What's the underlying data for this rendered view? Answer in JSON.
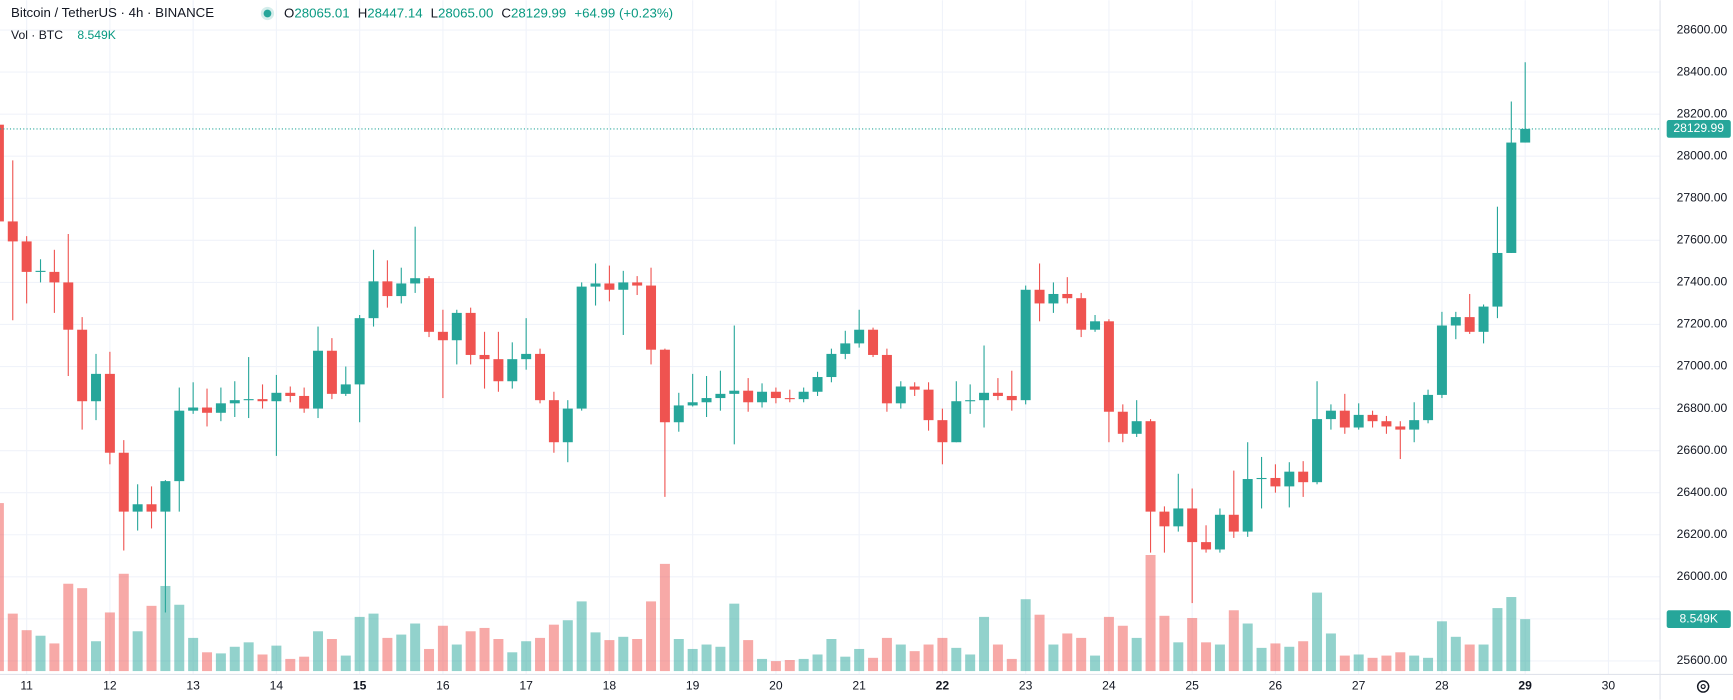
{
  "chart_data": {
    "type": "candlestick",
    "title": "Bitcoin / TetherUS · 4h · BINANCE",
    "ohlc": [
      {
        "key": "O",
        "value": "28065.01"
      },
      {
        "key": "H",
        "value": "28447.14"
      },
      {
        "key": "L",
        "value": "28065.00"
      },
      {
        "key": "C",
        "value": "28129.99"
      }
    ],
    "change": "+64.99 (+0.23%)",
    "volume_title": "Vol · BTC",
    "last_volume_label": "8.549K",
    "up_color": "#26a69a",
    "down_color": "#ef5350",
    "grid": true,
    "xlim": [
      10.68,
      30.62
    ],
    "xticks": [
      11,
      12,
      13,
      14,
      15,
      16,
      17,
      18,
      19,
      20,
      21,
      22,
      23,
      24,
      25,
      26,
      27,
      28,
      29,
      30
    ],
    "ylim": [
      25536,
      28742
    ],
    "yticks": [
      {
        "value": 25600,
        "label": "25600.00"
      },
      {
        "value": 25800,
        "label": "25800.00"
      },
      {
        "value": 26000,
        "label": "26000.00"
      },
      {
        "value": 26200,
        "label": "26200.00"
      },
      {
        "value": 26400,
        "label": "26400.00"
      },
      {
        "value": 26600,
        "label": "26600.00"
      },
      {
        "value": 26800,
        "label": "26800.00"
      },
      {
        "value": 27000,
        "label": "27000.00"
      },
      {
        "value": 27200,
        "label": "27200.00"
      },
      {
        "value": 27400,
        "label": "27400.00"
      },
      {
        "value": 27600,
        "label": "27600.00"
      },
      {
        "value": 27800,
        "label": "27800.00"
      },
      {
        "value": 28000,
        "label": "28000.00"
      },
      {
        "value": 28200,
        "label": "28200.00"
      },
      {
        "value": 28400,
        "label": "28400.00"
      },
      {
        "value": 28600,
        "label": "28600.00"
      }
    ],
    "x": [
      10.6667,
      10.8333,
      11,
      11.1667,
      11.3333,
      11.5,
      11.6667,
      11.8333,
      12,
      12.1667,
      12.3333,
      12.5,
      12.6667,
      12.8333,
      13,
      13.1667,
      13.3333,
      13.5,
      13.6667,
      13.8333,
      14,
      14.1667,
      14.3333,
      14.5,
      14.6667,
      14.8333,
      15,
      15.1667,
      15.3333,
      15.5,
      15.6667,
      15.8333,
      16,
      16.1667,
      16.3333,
      16.5,
      16.6667,
      16.8333,
      17,
      17.1667,
      17.3333,
      17.5,
      17.6667,
      17.8333,
      18,
      18.1667,
      18.3333,
      18.5,
      18.6667,
      18.8333,
      19,
      19.1667,
      19.3333,
      19.5,
      19.6667,
      19.8333,
      20,
      20.1667,
      20.3333,
      20.5,
      20.6667,
      20.8333,
      21,
      21.1667,
      21.3333,
      21.5,
      21.6667,
      21.8333,
      22,
      22.1667,
      22.3333,
      22.5,
      22.6667,
      22.8333,
      23,
      23.1667,
      23.3333,
      23.5,
      23.6667,
      23.8333,
      24,
      24.1667,
      24.3333,
      24.5,
      24.6667,
      24.8333,
      25,
      25.1667,
      25.3333,
      25.5,
      25.6667,
      25.8333,
      26,
      26.1667,
      26.3333,
      26.5,
      26.6667,
      26.8333,
      27,
      27.1667,
      27.3333,
      27.5,
      27.6667,
      27.8333,
      28,
      28.1667,
      28.3333,
      28.5,
      28.6667,
      28.8333,
      29
    ],
    "open": [
      28150,
      27690,
      27595,
      27450,
      27450,
      27400,
      27175,
      26835,
      26965,
      26590,
      26310,
      26345,
      26310,
      26455,
      26790,
      26805,
      26780,
      26825,
      26840,
      26845,
      26835,
      26875,
      26860,
      26800,
      27075,
      26870,
      26915,
      27230,
      27405,
      27335,
      27395,
      27420,
      27165,
      27125,
      27255,
      27055,
      27035,
      26930,
      27035,
      27060,
      26840,
      26640,
      26800,
      27380,
      27395,
      27365,
      27400,
      27385,
      27080,
      26735,
      26815,
      26830,
      26850,
      26870,
      26885,
      26830,
      26880,
      26850,
      26845,
      26880,
      26950,
      27060,
      27110,
      27175,
      27055,
      26825,
      26905,
      26890,
      26745,
      26640,
      26835,
      26840,
      26875,
      26860,
      26840,
      27365,
      27300,
      27345,
      27325,
      27175,
      27215,
      26785,
      26680,
      26740,
      26310,
      26240,
      26325,
      26165,
      26130,
      26295,
      26215,
      26465,
      26470,
      26430,
      26500,
      26450,
      26750,
      26790,
      26710,
      26770,
      26740,
      26715,
      26700,
      26745,
      26865,
      27195,
      27235,
      27165,
      27285,
      27540,
      28065.01
    ],
    "high": [
      28160,
      27980,
      27620,
      27510,
      27555,
      27630,
      27235,
      27060,
      27070,
      26650,
      26440,
      26430,
      26460,
      26900,
      26925,
      26895,
      26900,
      26930,
      27045,
      26915,
      26960,
      26905,
      26900,
      27190,
      27135,
      27000,
      27245,
      27555,
      27505,
      27470,
      27665,
      27430,
      27270,
      27270,
      27280,
      27165,
      27165,
      27115,
      27230,
      27085,
      26880,
      26840,
      27400,
      27490,
      27480,
      27455,
      27430,
      27470,
      27085,
      26875,
      26965,
      26955,
      26980,
      27195,
      26945,
      26920,
      26900,
      26890,
      26900,
      26975,
      27085,
      27170,
      27270,
      27185,
      27085,
      26930,
      26925,
      26925,
      26800,
      26930,
      26915,
      27100,
      26945,
      26980,
      27385,
      27490,
      27400,
      27425,
      27350,
      27245,
      27225,
      26820,
      26840,
      26750,
      26335,
      26490,
      26420,
      26245,
      26325,
      26505,
      26640,
      26570,
      26535,
      26545,
      26550,
      26930,
      26820,
      26870,
      26825,
      26790,
      26765,
      26740,
      26830,
      26890,
      27260,
      27260,
      27345,
      27295,
      27760,
      28260,
      28447.14
    ],
    "low": [
      27680,
      27220,
      27300,
      27400,
      27255,
      26955,
      26700,
      26745,
      26535,
      26125,
      26220,
      26230,
      25830,
      26310,
      26775,
      26715,
      26740,
      26760,
      26755,
      26800,
      26575,
      26830,
      26780,
      26755,
      26845,
      26860,
      26735,
      27190,
      27280,
      27300,
      27350,
      27140,
      26850,
      27010,
      27010,
      26895,
      26880,
      26895,
      26985,
      26825,
      26590,
      26545,
      26790,
      27290,
      27310,
      27150,
      27340,
      27010,
      26380,
      26690,
      26810,
      26760,
      26790,
      26630,
      26785,
      26805,
      26825,
      26830,
      26830,
      26860,
      26925,
      27035,
      27090,
      27045,
      26785,
      26800,
      26860,
      26695,
      26535,
      26640,
      26775,
      26710,
      26840,
      26790,
      26820,
      27215,
      27255,
      27300,
      27140,
      27165,
      26640,
      26640,
      26665,
      26115,
      26115,
      26215,
      25875,
      26115,
      26115,
      26185,
      26190,
      26325,
      26400,
      26330,
      26380,
      26440,
      26700,
      26680,
      26700,
      26710,
      26680,
      26560,
      26640,
      26730,
      26850,
      27130,
      27155,
      27110,
      27230,
      27540,
      28065.0
    ],
    "close": [
      27690,
      27595,
      27450,
      27455,
      27400,
      27175,
      26835,
      26965,
      26590,
      26310,
      26345,
      26310,
      26455,
      26790,
      26805,
      26780,
      26825,
      26840,
      26845,
      26835,
      26875,
      26860,
      26800,
      27075,
      26870,
      26915,
      27230,
      27405,
      27335,
      27395,
      27420,
      27165,
      27125,
      27255,
      27055,
      27035,
      26930,
      27035,
      27060,
      26840,
      26640,
      26800,
      27380,
      27395,
      27365,
      27400,
      27385,
      27080,
      26735,
      26815,
      26830,
      26850,
      26870,
      26885,
      26830,
      26880,
      26850,
      26845,
      26880,
      26950,
      27060,
      27110,
      27175,
      27055,
      26825,
      26905,
      26890,
      26745,
      26640,
      26835,
      26840,
      26875,
      26860,
      26840,
      27365,
      27300,
      27345,
      27325,
      27175,
      27215,
      26785,
      26680,
      26740,
      26310,
      26240,
      26325,
      26165,
      26130,
      26295,
      26215,
      26465,
      26470,
      26430,
      26500,
      26450,
      26750,
      26790,
      26710,
      26770,
      26740,
      26715,
      26700,
      26745,
      26865,
      27195,
      27235,
      27165,
      27285,
      27540,
      28065,
      28129.99
    ],
    "volume": [
      27660,
      9460,
      6730,
      5820,
      4550,
      14380,
      13650,
      4910,
      9650,
      16020,
      6550,
      10740,
      14010,
      10920,
      5460,
      3090,
      2910,
      4000,
      4730,
      2730,
      4190,
      2000,
      2370,
      6550,
      5280,
      2550,
      8920,
      9460,
      5460,
      6010,
      7830,
      3640,
      7460,
      4370,
      6550,
      7100,
      5280,
      3090,
      4910,
      5460,
      7640,
      8370,
      11470,
      6370,
      5100,
      5640,
      5280,
      11470,
      17650,
      5280,
      3640,
      4370,
      4000,
      11100,
      5100,
      2000,
      1640,
      1820,
      2000,
      2730,
      5280,
      2370,
      3640,
      2180,
      5460,
      4370,
      3280,
      4370,
      5460,
      3820,
      2730,
      8920,
      4370,
      2000,
      11830,
      9280,
      4370,
      6190,
      5460,
      2550,
      8920,
      7460,
      5460,
      19110,
      9100,
      4730,
      8740,
      4730,
      4370,
      10010,
      7830,
      3820,
      4550,
      4000,
      4910,
      12920,
      6190,
      2550,
      2730,
      2180,
      2550,
      3090,
      2550,
      2180,
      8190,
      5640,
      4370,
      4370,
      10370,
      12190,
      8549
    ]
  }
}
